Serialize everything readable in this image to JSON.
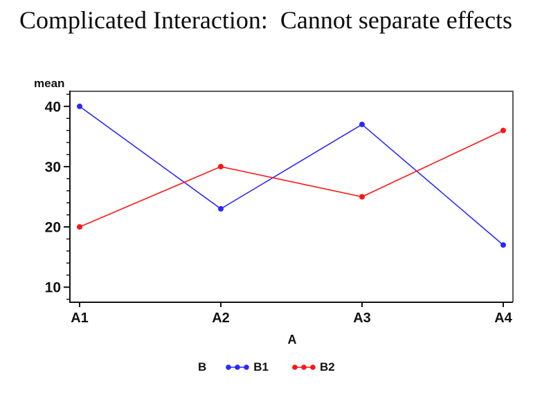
{
  "chart_data": {
    "type": "line",
    "title": "Complicated Interaction:  Cannot separate effects",
    "categories": [
      "A1",
      "A2",
      "A3",
      "A4"
    ],
    "series": [
      {
        "name": "B1",
        "color": "#2828ff",
        "values": [
          40,
          23,
          37,
          17
        ]
      },
      {
        "name": "B2",
        "color": "#ff1414",
        "values": [
          20,
          30,
          25,
          36
        ]
      }
    ],
    "xlabel": "A",
    "ylabel": "mean",
    "legend_label": "B",
    "legend_position": "bottom",
    "ylim": [
      7.5,
      42.5
    ],
    "yticks": [
      10,
      20,
      30,
      40
    ],
    "y_minor_ticks": [
      8,
      12,
      14,
      16,
      18,
      22,
      24,
      26,
      28,
      32,
      34,
      36,
      38,
      42
    ],
    "grid": false
  },
  "colors": {
    "text": "#111111",
    "axis": "#111111",
    "frame_shadow": "#5a5a5a",
    "background": "#ffffff"
  }
}
